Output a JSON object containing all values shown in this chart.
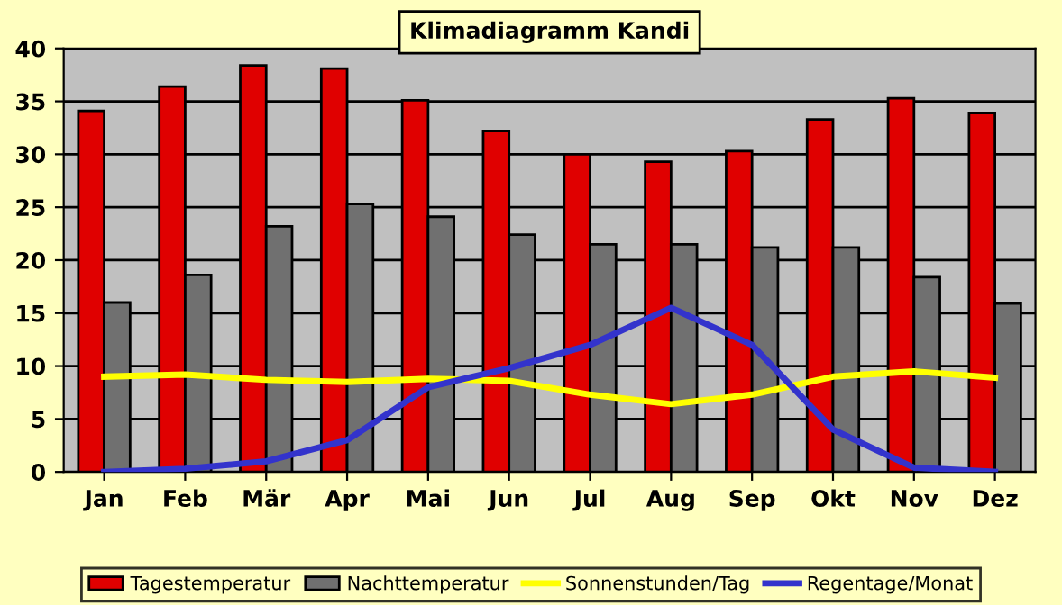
{
  "chart_data": {
    "type": "bar",
    "title": "Klimadiagramm Kandi",
    "categories": [
      "Jan",
      "Feb",
      "Mär",
      "Apr",
      "Mai",
      "Jun",
      "Jul",
      "Aug",
      "Sep",
      "Okt",
      "Nov",
      "Dez"
    ],
    "series": [
      {
        "name": "Tagestemperatur",
        "color": "#e00000",
        "values": [
          34.1,
          36.4,
          38.4,
          38.1,
          35.1,
          32.2,
          30.0,
          29.3,
          30.3,
          33.3,
          35.3,
          33.9
        ]
      },
      {
        "name": "Nachttemperatur",
        "color": "#707070",
        "values": [
          16.0,
          18.6,
          23.2,
          25.3,
          24.1,
          22.4,
          21.5,
          21.5,
          21.2,
          21.2,
          18.4,
          15.9
        ]
      },
      {
        "name": "Sonnenstunden/Tag",
        "type": "line",
        "color": "#ffff00",
        "values": [
          9.0,
          9.2,
          8.7,
          8.5,
          8.8,
          8.6,
          7.3,
          6.4,
          7.3,
          9.0,
          9.5,
          8.9
        ]
      },
      {
        "name": "Regentage/Monat",
        "type": "line",
        "color": "#3333cc",
        "values": [
          0.0,
          0.3,
          1.0,
          3.0,
          8.0,
          9.8,
          12.0,
          15.5,
          12.0,
          4.0,
          0.4,
          0.0
        ]
      }
    ],
    "ylim": [
      0,
      40
    ],
    "yticks": [
      0,
      5,
      10,
      15,
      20,
      25,
      30,
      35,
      40
    ],
    "grid": "y",
    "legend": "bottom"
  }
}
